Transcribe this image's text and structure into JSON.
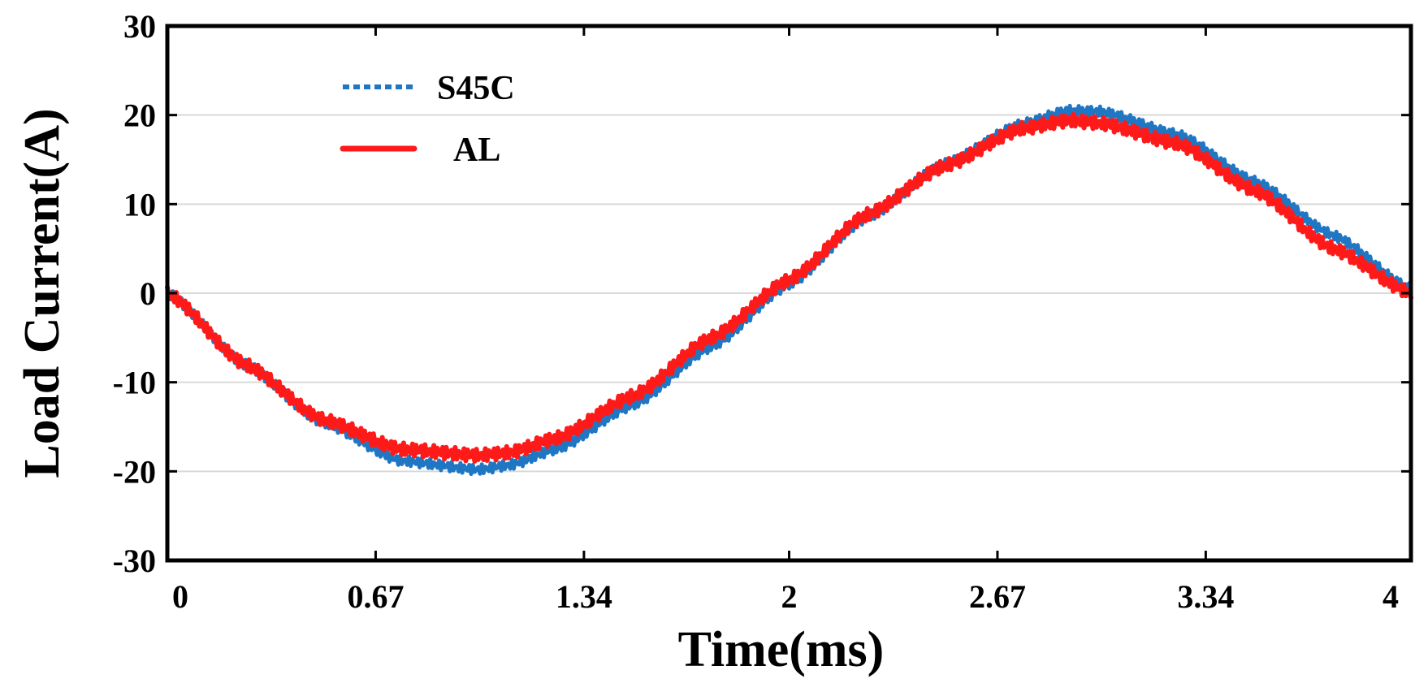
{
  "chart_data": {
    "type": "line",
    "title": "",
    "xlabel": "Time(ms)",
    "ylabel": "Load Current(A)",
    "xlim": [
      0,
      4
    ],
    "ylim": [
      -30,
      30
    ],
    "x_ticks": [
      0,
      0.67,
      1.34,
      2,
      2.67,
      3.34,
      4
    ],
    "x_tick_labels": [
      "0",
      "0.67",
      "1.34",
      "2",
      "2.67",
      "3.34",
      "4"
    ],
    "y_ticks": [
      -30,
      -20,
      -10,
      0,
      10,
      20,
      30
    ],
    "y_tick_labels": [
      "-30",
      "-20",
      "-10",
      "0",
      "10",
      "20",
      "30"
    ],
    "grid": "horizontal",
    "legend_position": "top-left",
    "series": [
      {
        "name": "S45C",
        "color": "#1f77c4",
        "legend_style": "dotted",
        "x": [
          0,
          0.25,
          0.5,
          0.75,
          1.0,
          1.1,
          1.25,
          1.5,
          1.75,
          2.0,
          2.25,
          2.5,
          2.75,
          2.9,
          3.0,
          3.25,
          3.5,
          3.75,
          4.0
        ],
        "y": [
          0,
          -8,
          -14.5,
          -18.8,
          -19.8,
          -19.3,
          -17.5,
          -12.5,
          -6,
          1,
          8.5,
          14.5,
          19,
          20.5,
          20.4,
          17.8,
          12.5,
          6.5,
          0.5
        ]
      },
      {
        "name": "AL",
        "color": "#ff1a1a",
        "legend_style": "solid",
        "x": [
          0,
          0.25,
          0.5,
          0.75,
          1.0,
          1.1,
          1.25,
          1.5,
          1.75,
          2.0,
          2.25,
          2.5,
          2.75,
          2.9,
          3.0,
          3.25,
          3.5,
          3.75,
          4.0
        ],
        "y": [
          0,
          -8,
          -14.2,
          -17.5,
          -18.2,
          -17.9,
          -16.3,
          -11.5,
          -5,
          1.5,
          8.8,
          14.3,
          18.5,
          19.4,
          19.1,
          16.8,
          11.5,
          5,
          0
        ]
      }
    ]
  }
}
